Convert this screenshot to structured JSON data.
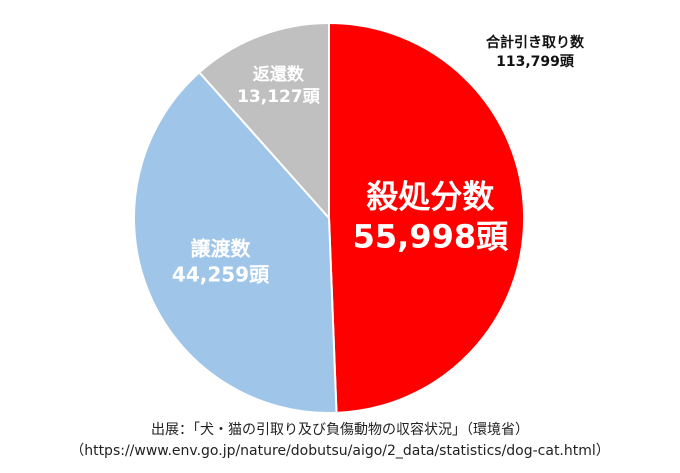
{
  "chart_data": {
    "type": "pie",
    "total": {
      "label": "合計引き取り数",
      "value_label": "113,799頭",
      "value": 113799
    },
    "slices": [
      {
        "name": "殺処分数",
        "value": 55998,
        "value_label": "55,998頭",
        "color": "#ff0000",
        "label_color": "#ffffff"
      },
      {
        "name": "譲渡数",
        "value": 44259,
        "value_label": "44,259頭",
        "color": "#9fc5e8",
        "label_color": "#ffffff"
      },
      {
        "name": "返還数",
        "value": 13127,
        "value_label": "13,127頭",
        "color": "#c0c0c0",
        "label_color": "#ffffff"
      }
    ],
    "start": "top",
    "direction": "clockwise",
    "legend": "none"
  },
  "source": {
    "line1": "出展：「犬・猫の引取り及び負傷動物の収容状況」（環境省）",
    "line2": "（https://www.env.go.jp/nature/dobutsu/aigo/2_data/statistics/dog-cat.html）"
  }
}
